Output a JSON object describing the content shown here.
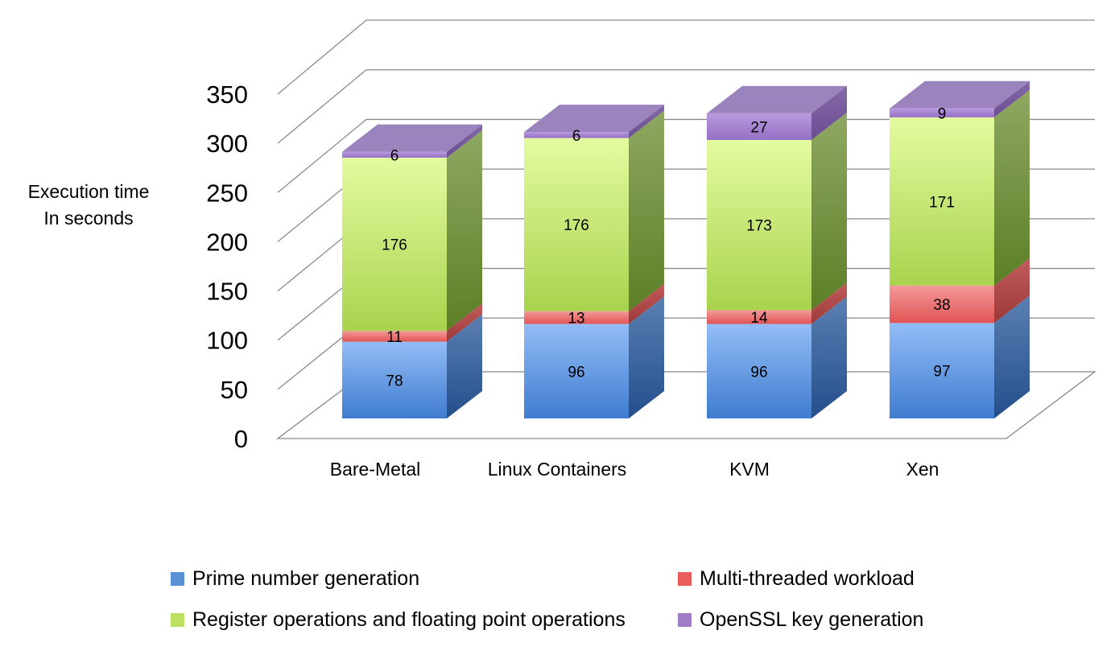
{
  "chart_data": {
    "type": "bar",
    "stacked": true,
    "ylabel_lines": [
      "Execution time",
      "In seconds"
    ],
    "ylim": [
      0,
      350
    ],
    "yticks": [
      "0",
      "50",
      "100",
      "150",
      "200",
      "250",
      "300",
      "350"
    ],
    "categories": [
      "Bare-Metal",
      "Linux Containers",
      "KVM",
      "Xen"
    ],
    "series": [
      {
        "name": "Prime number generation",
        "values": [
          78,
          96,
          96,
          97
        ],
        "color": "#5b8fd6"
      },
      {
        "name": "Multi-threaded workload",
        "values": [
          11,
          13,
          14,
          38
        ],
        "color": "#e85c5c"
      },
      {
        "name": "Register operations and floating point operations",
        "values": [
          176,
          176,
          173,
          171
        ],
        "color": "#bde060"
      },
      {
        "name": "OpenSSL key generation",
        "values": [
          6,
          6,
          27,
          9
        ],
        "color": "#a07cc8"
      }
    ],
    "grid": true,
    "legend_position": "bottom"
  }
}
